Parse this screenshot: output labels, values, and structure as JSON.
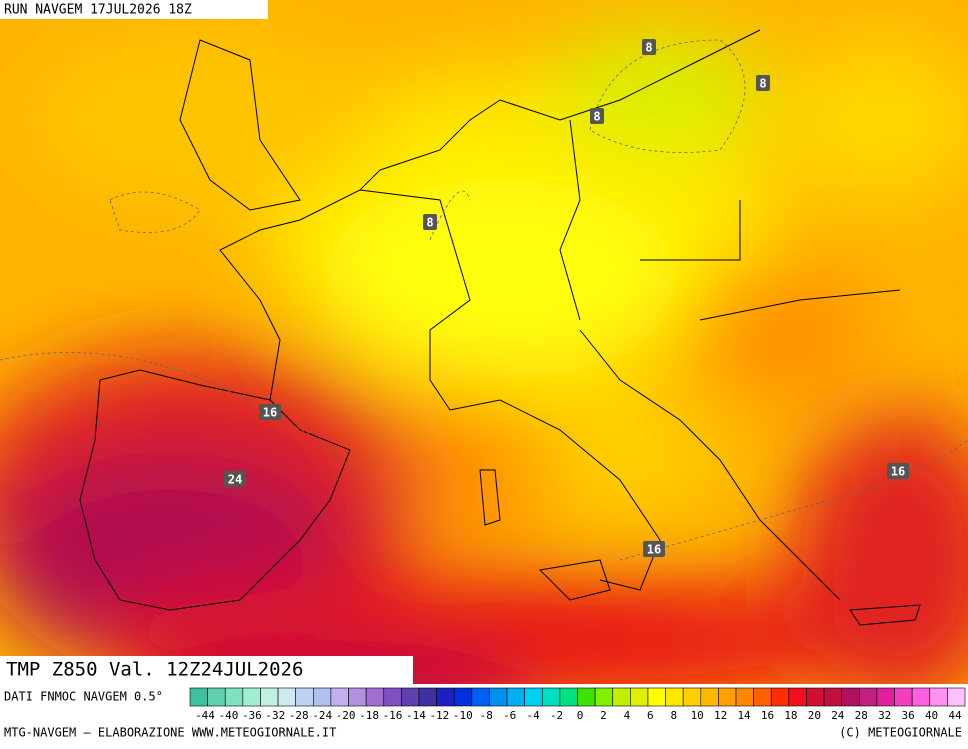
{
  "header": {
    "title": "RUN NAVGEM 17JUL2026 18Z"
  },
  "map": {
    "contour_labels": [
      "8",
      "8",
      "8",
      "8",
      "16",
      "16",
      "16",
      "24"
    ]
  },
  "footer": {
    "product": "TMP Z850 Val. 12Z24JUL2026",
    "source": "DATI FNMOC NAVGEM 0.5°",
    "credit": "MTG-NAVGEM – ELABORAZIONE WWW.METEOGIORNALE.IT",
    "copyright": "(C) METEOGIORNALE"
  },
  "legend": {
    "labels": [
      -44,
      -40,
      -36,
      -32,
      -28,
      -24,
      -20,
      -18,
      -16,
      -14,
      -12,
      -10,
      -8,
      -6,
      -4,
      -2,
      0,
      2,
      4,
      6,
      8,
      10,
      12,
      14,
      16,
      18,
      20,
      24,
      28,
      32,
      36,
      40,
      44
    ],
    "colors": [
      "#40c0a0",
      "#60d0b0",
      "#80e0c0",
      "#a0f0d0",
      "#c0f0e0",
      "#d0e8f0",
      "#c0d0f0",
      "#b0c0f0",
      "#c0b0f0",
      "#b090e0",
      "#a070d0",
      "#8050c0",
      "#6040b0",
      "#4030a0",
      "#2020c0",
      "#0030e0",
      "#0060f0",
      "#0090f0",
      "#00b0f0",
      "#00d0f0",
      "#00e0c0",
      "#00e080",
      "#40e000",
      "#80f000",
      "#c0f000",
      "#e0f000",
      "#ffff00",
      "#ffe800",
      "#ffd000",
      "#ffb800",
      "#ffa000",
      "#ff8800",
      "#ff6000",
      "#ff3000",
      "#f01020",
      "#d01030",
      "#c01040",
      "#b01060",
      "#c02080",
      "#e020a0",
      "#f040c0",
      "#ff60e0",
      "#ff90f0",
      "#ffc0ff"
    ]
  }
}
